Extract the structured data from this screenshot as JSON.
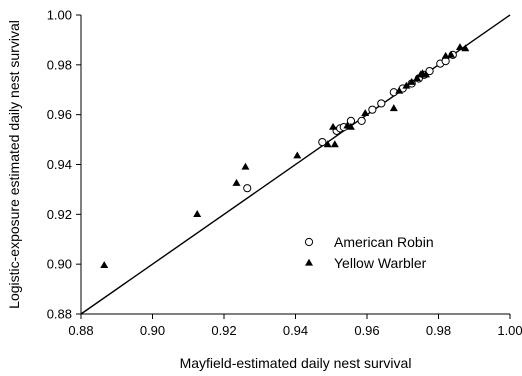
{
  "chart_data": {
    "type": "scatter",
    "title": "",
    "xlabel": "Mayfield-estimated daily nest survival",
    "ylabel": "Logistic-exposure estimated daily nest survival",
    "xlim": [
      0.88,
      1.0
    ],
    "ylim": [
      0.88,
      1.0
    ],
    "x_ticks": [
      "0.88",
      "0.90",
      "0.92",
      "0.94",
      "0.96",
      "0.98",
      "1.00"
    ],
    "y_ticks": [
      "0.88",
      "0.90",
      "0.92",
      "0.94",
      "0.96",
      "0.98",
      "1.00"
    ],
    "grid": false,
    "legend_position": "lower-right",
    "reference_line": {
      "type": "1:1",
      "from": [
        0.88,
        0.88
      ],
      "to": [
        1.0,
        1.0
      ]
    },
    "series": [
      {
        "name": "American Robin",
        "marker": "open-circle",
        "points": [
          [
            0.9265,
            0.9305
          ],
          [
            0.9475,
            0.949
          ],
          [
            0.9515,
            0.9535
          ],
          [
            0.9525,
            0.9545
          ],
          [
            0.9535,
            0.955
          ],
          [
            0.9555,
            0.9575
          ],
          [
            0.9585,
            0.9575
          ],
          [
            0.9615,
            0.962
          ],
          [
            0.964,
            0.9645
          ],
          [
            0.9675,
            0.969
          ],
          [
            0.97,
            0.9705
          ],
          [
            0.9725,
            0.9725
          ],
          [
            0.9745,
            0.9745
          ],
          [
            0.976,
            0.976
          ],
          [
            0.9775,
            0.9775
          ],
          [
            0.9805,
            0.9805
          ],
          [
            0.982,
            0.9815
          ],
          [
            0.984,
            0.984
          ]
        ]
      },
      {
        "name": "Yellow Warbler",
        "marker": "filled-triangle",
        "points": [
          [
            0.8865,
            0.8995
          ],
          [
            0.9125,
            0.92
          ],
          [
            0.9235,
            0.9325
          ],
          [
            0.926,
            0.939
          ],
          [
            0.9405,
            0.9435
          ],
          [
            0.949,
            0.948
          ],
          [
            0.951,
            0.948
          ],
          [
            0.9505,
            0.955
          ],
          [
            0.9545,
            0.9555
          ],
          [
            0.9555,
            0.955
          ],
          [
            0.9595,
            0.9605
          ],
          [
            0.9675,
            0.9625
          ],
          [
            0.969,
            0.9695
          ],
          [
            0.971,
            0.9715
          ],
          [
            0.9725,
            0.973
          ],
          [
            0.974,
            0.9745
          ],
          [
            0.975,
            0.976
          ],
          [
            0.9755,
            0.9765
          ],
          [
            0.9765,
            0.976
          ],
          [
            0.982,
            0.9835
          ],
          [
            0.9835,
            0.984
          ],
          [
            0.986,
            0.987
          ],
          [
            0.9875,
            0.9865
          ]
        ]
      }
    ]
  },
  "colors": {
    "axis": "#000000",
    "background": "#ffffff",
    "marker": "#000000"
  }
}
